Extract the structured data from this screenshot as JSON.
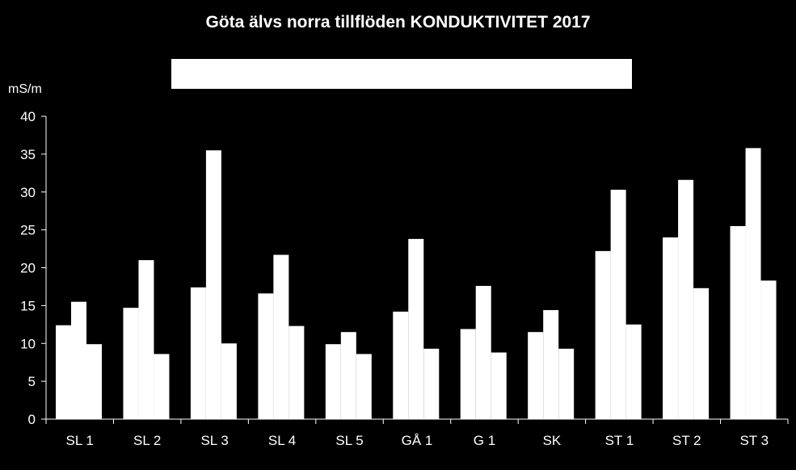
{
  "chart_data": {
    "type": "bar",
    "title": "Göta älvs norra tillflöden KONDUKTIVITET 2017",
    "ylabel": "mS/m",
    "xlabel": "",
    "ylim": [
      0,
      40
    ],
    "yticks": [
      0,
      5,
      10,
      15,
      20,
      25,
      30,
      35,
      40
    ],
    "grid": false,
    "legend": "top-center",
    "categories": [
      "SL 1",
      "SL 2",
      "SL 3",
      "SL 4",
      "SL 5",
      "GÅ 1",
      "G 1",
      "SK",
      "ST 1",
      "ST 2",
      "ST 3"
    ],
    "series": [
      {
        "values": [
          12.4,
          14.7,
          17.4,
          16.6,
          9.9,
          14.2,
          11.9,
          11.5,
          22.2,
          24.0,
          25.5
        ]
      },
      {
        "values": [
          15.5,
          21.0,
          35.5,
          21.7,
          11.5,
          23.8,
          17.6,
          14.4,
          30.3,
          31.6,
          35.8
        ]
      },
      {
        "values": [
          9.9,
          8.6,
          10.0,
          12.3,
          8.6,
          9.3,
          8.8,
          9.3,
          12.5,
          17.3,
          18.3
        ]
      }
    ],
    "colors": {
      "background": "#000000",
      "bars": "#ffffff",
      "axis": "#ffffff",
      "text": "#ffffff"
    }
  }
}
